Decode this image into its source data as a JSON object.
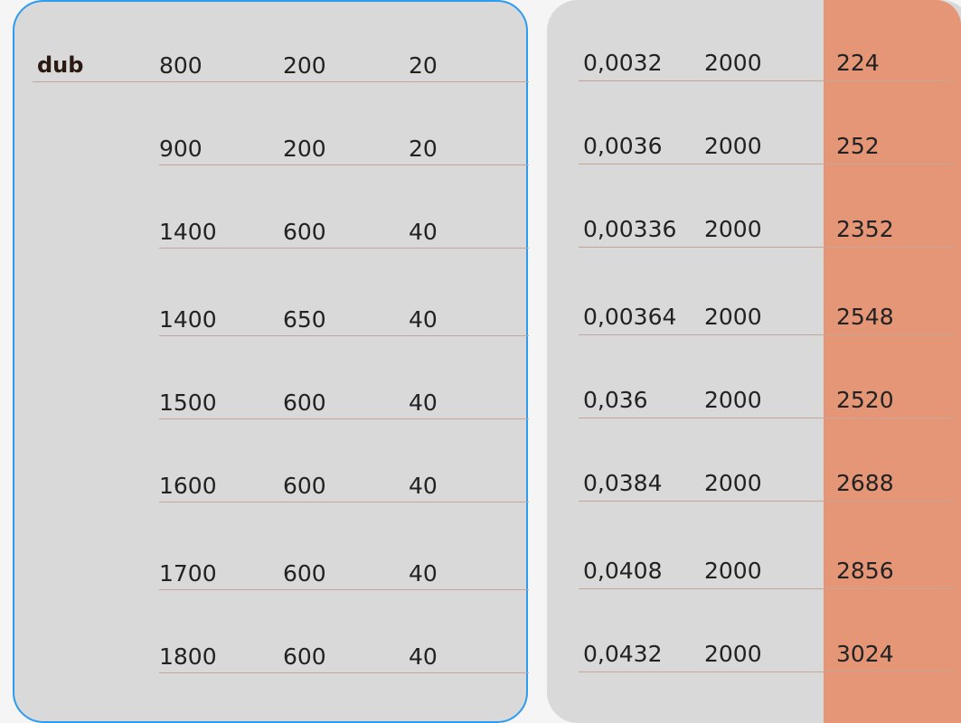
{
  "group_label": "dub",
  "left_rows": [
    [
      "800",
      "200",
      "20"
    ],
    [
      "900",
      "200",
      "20"
    ],
    [
      "1400",
      "600",
      "40"
    ],
    [
      "1400",
      "650",
      "40"
    ],
    [
      "1500",
      "600",
      "40"
    ],
    [
      "1600",
      "600",
      "40"
    ],
    [
      "1700",
      "600",
      "40"
    ],
    [
      "1800",
      "600",
      "40"
    ]
  ],
  "right_rows": [
    [
      "0,0032",
      "2000",
      "224"
    ],
    [
      "0,0036",
      "2000",
      "252"
    ],
    [
      "0,00336",
      "2000",
      "2352"
    ],
    [
      "0,00364",
      "2000",
      "2548"
    ],
    [
      "0,036",
      "2000",
      "2520"
    ],
    [
      "0,0384",
      "2000",
      "2688"
    ],
    [
      "0,0408",
      "2000",
      "2856"
    ],
    [
      "0,0432",
      "2000",
      "3024"
    ]
  ],
  "colors": {
    "panel": "#d9d9d9",
    "left_panel_border": "#2d9bf0",
    "highlight_column": "#e59677",
    "row_rule": "#c7a69a"
  }
}
